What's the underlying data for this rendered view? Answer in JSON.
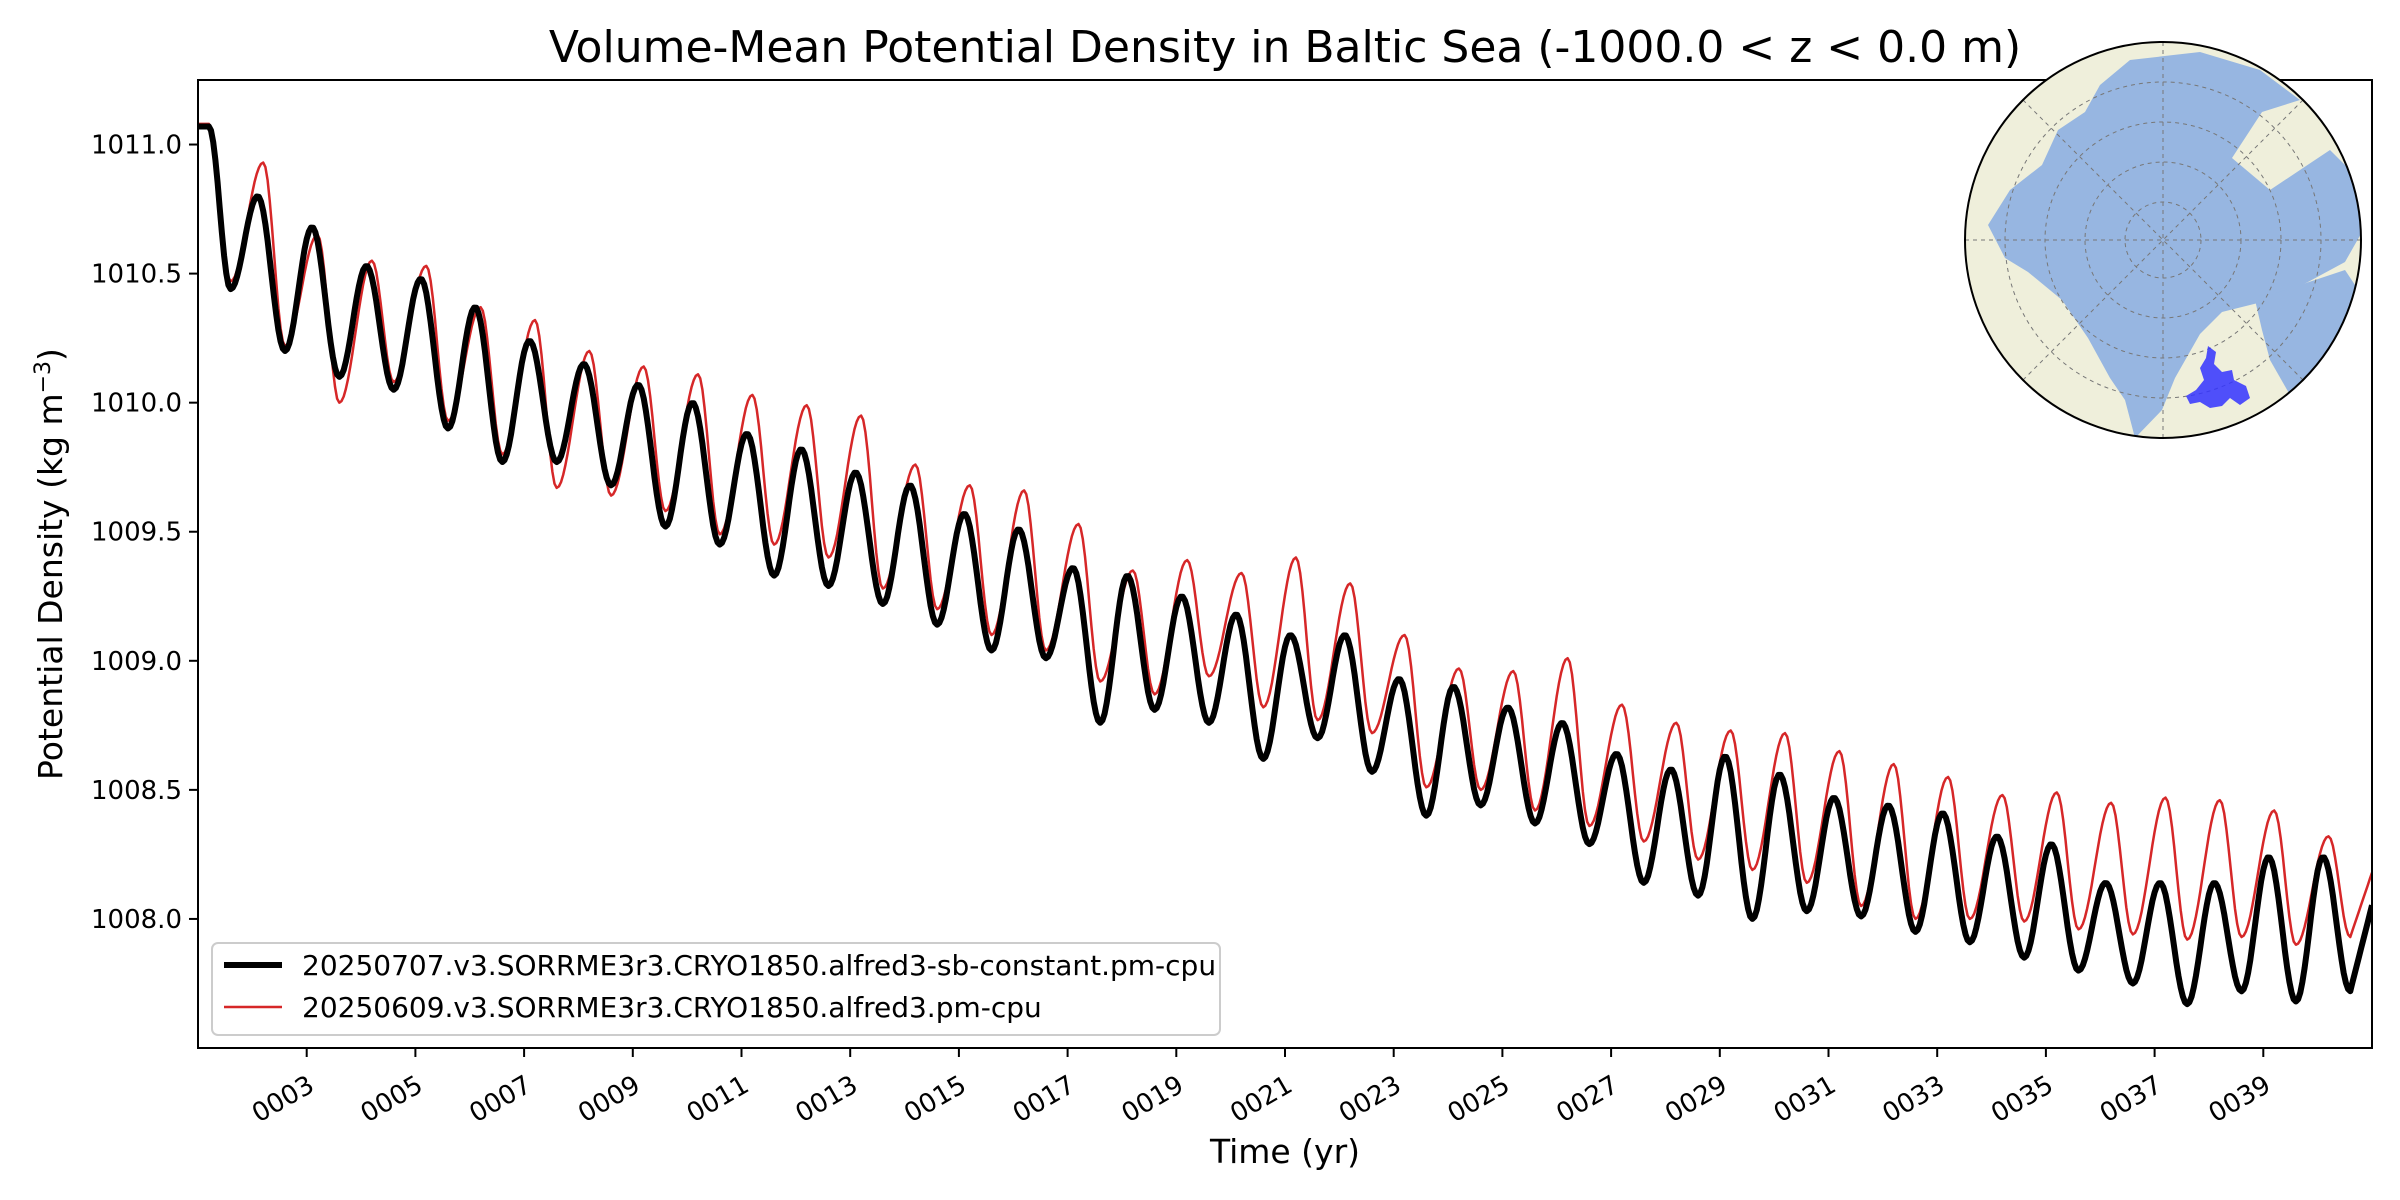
{
  "chart_data": {
    "type": "line",
    "title": "Volume-Mean Potential Density in Baltic Sea (-1000.0 < z < 0.0 m)",
    "xlabel": "Time (yr)",
    "ylabel_main": "Potential Density (kg m",
    "ylabel_exp": "−3",
    "ylabel_close": ")",
    "xlim": [
      1.0,
      41.0
    ],
    "ylim": [
      1007.5,
      1011.25
    ],
    "xticks": [
      3,
      5,
      7,
      9,
      11,
      13,
      15,
      17,
      19,
      21,
      23,
      25,
      27,
      29,
      31,
      33,
      35,
      37,
      39
    ],
    "xtick_labels": [
      "0003",
      "0005",
      "0007",
      "0009",
      "0011",
      "0013",
      "0015",
      "0017",
      "0019",
      "0021",
      "0023",
      "0025",
      "0027",
      "0029",
      "0031",
      "0033",
      "0035",
      "0037",
      "0039"
    ],
    "yticks": [
      1008.0,
      1008.5,
      1009.0,
      1009.5,
      1010.0,
      1010.5,
      1011.0
    ],
    "ytick_labels": [
      "1008.0",
      "1008.5",
      "1009.0",
      "1009.5",
      "1010.0",
      "1010.5",
      "1011.0"
    ],
    "grid": false,
    "legend_position": "lower-left",
    "series": [
      {
        "name": "20250707.v3.SORRME3r3.CRYO1850.alfred3-sb-constant.pm-cpu",
        "color": "#000000",
        "peaks_x": [
          1.2,
          2.1,
          3.1,
          4.1,
          5.1,
          6.1,
          7.1,
          8.1,
          9.1,
          10.1,
          11.1,
          12.1,
          13.1,
          14.1,
          15.1,
          16.1,
          17.1,
          18.1,
          19.1,
          20.1,
          21.1,
          22.1,
          23.1,
          24.1,
          25.1,
          26.1,
          27.1,
          28.1,
          29.1,
          30.1,
          31.1,
          32.1,
          33.1,
          34.1,
          35.1,
          36.1,
          37.1,
          38.1,
          39.1,
          40.1
        ],
        "peaks_y": [
          1011.07,
          1010.8,
          1010.68,
          1010.53,
          1010.48,
          1010.37,
          1010.24,
          1010.15,
          1010.07,
          1010.0,
          1009.88,
          1009.82,
          1009.73,
          1009.68,
          1009.57,
          1009.51,
          1009.36,
          1009.33,
          1009.25,
          1009.18,
          1009.1,
          1009.1,
          1008.93,
          1008.9,
          1008.82,
          1008.76,
          1008.64,
          1008.58,
          1008.63,
          1008.56,
          1008.47,
          1008.44,
          1008.41,
          1008.32,
          1008.29,
          1008.14,
          1008.14,
          1008.14,
          1008.24,
          1008.24
        ],
        "troughs_x": [
          1.6,
          2.6,
          3.6,
          4.6,
          5.6,
          6.6,
          7.6,
          8.6,
          9.6,
          10.6,
          11.6,
          12.6,
          13.6,
          14.6,
          15.6,
          16.6,
          17.6,
          18.6,
          19.6,
          20.6,
          21.6,
          22.6,
          23.6,
          24.6,
          25.6,
          26.6,
          27.6,
          28.6,
          29.6,
          30.6,
          31.6,
          32.6,
          33.6,
          34.6,
          35.6,
          36.6,
          37.6,
          38.6,
          39.6,
          40.6
        ],
        "troughs_y": [
          1010.44,
          1010.2,
          1010.1,
          1010.05,
          1009.9,
          1009.77,
          1009.77,
          1009.68,
          1009.52,
          1009.45,
          1009.33,
          1009.29,
          1009.22,
          1009.14,
          1009.04,
          1009.01,
          1008.76,
          1008.81,
          1008.76,
          1008.62,
          1008.7,
          1008.57,
          1008.4,
          1008.44,
          1008.37,
          1008.29,
          1008.14,
          1008.09,
          1008.0,
          1008.03,
          1008.01,
          1007.95,
          1007.91,
          1007.85,
          1007.8,
          1007.75,
          1007.67,
          1007.72,
          1007.68,
          1007.72
        ]
      },
      {
        "name": "20250609.v3.SORRME3r3.CRYO1850.alfred3.pm-cpu",
        "color": "#d62728",
        "peaks_x": [
          1.2,
          2.2,
          3.2,
          4.2,
          5.2,
          6.2,
          7.2,
          8.2,
          9.2,
          10.2,
          11.2,
          12.2,
          13.2,
          14.2,
          15.2,
          16.2,
          17.2,
          18.2,
          19.2,
          20.2,
          21.2,
          22.2,
          23.2,
          24.2,
          25.2,
          26.2,
          27.2,
          28.2,
          29.2,
          30.2,
          31.2,
          32.2,
          33.2,
          34.2,
          35.2,
          36.2,
          37.2,
          38.2,
          39.2,
          40.2
        ],
        "peaks_y": [
          1011.08,
          1010.93,
          1010.65,
          1010.55,
          1010.53,
          1010.37,
          1010.32,
          1010.2,
          1010.14,
          1010.11,
          1010.03,
          1009.99,
          1009.95,
          1009.76,
          1009.68,
          1009.66,
          1009.53,
          1009.35,
          1009.39,
          1009.34,
          1009.4,
          1009.3,
          1009.1,
          1008.97,
          1008.96,
          1009.01,
          1008.83,
          1008.76,
          1008.73,
          1008.72,
          1008.65,
          1008.6,
          1008.55,
          1008.48,
          1008.49,
          1008.45,
          1008.47,
          1008.46,
          1008.42,
          1008.32
        ],
        "troughs_x": [
          1.6,
          2.6,
          3.6,
          4.6,
          5.6,
          6.6,
          7.6,
          8.6,
          9.6,
          10.6,
          11.6,
          12.6,
          13.6,
          14.6,
          15.6,
          16.6,
          17.6,
          18.6,
          19.6,
          20.6,
          21.6,
          22.6,
          23.6,
          24.6,
          25.6,
          26.6,
          27.6,
          28.6,
          29.6,
          30.6,
          31.6,
          32.6,
          33.6,
          34.6,
          35.6,
          36.6,
          37.6,
          38.6,
          39.6,
          40.6
        ],
        "troughs_y": [
          1010.47,
          1010.22,
          1010.0,
          1010.08,
          1009.93,
          1009.8,
          1009.67,
          1009.64,
          1009.58,
          1009.49,
          1009.45,
          1009.4,
          1009.28,
          1009.2,
          1009.1,
          1009.04,
          1008.92,
          1008.87,
          1008.94,
          1008.82,
          1008.77,
          1008.72,
          1008.51,
          1008.5,
          1008.42,
          1008.36,
          1008.3,
          1008.23,
          1008.19,
          1008.14,
          1008.05,
          1008.0,
          1008.0,
          1007.99,
          1007.96,
          1007.94,
          1007.92,
          1007.93,
          1007.9,
          1007.93
        ]
      }
    ]
  },
  "inset_map": {
    "projection": "north-polar",
    "ocean_color": "#97b6e1",
    "land_color": "#efefdb",
    "region_color": "#3333ff"
  }
}
